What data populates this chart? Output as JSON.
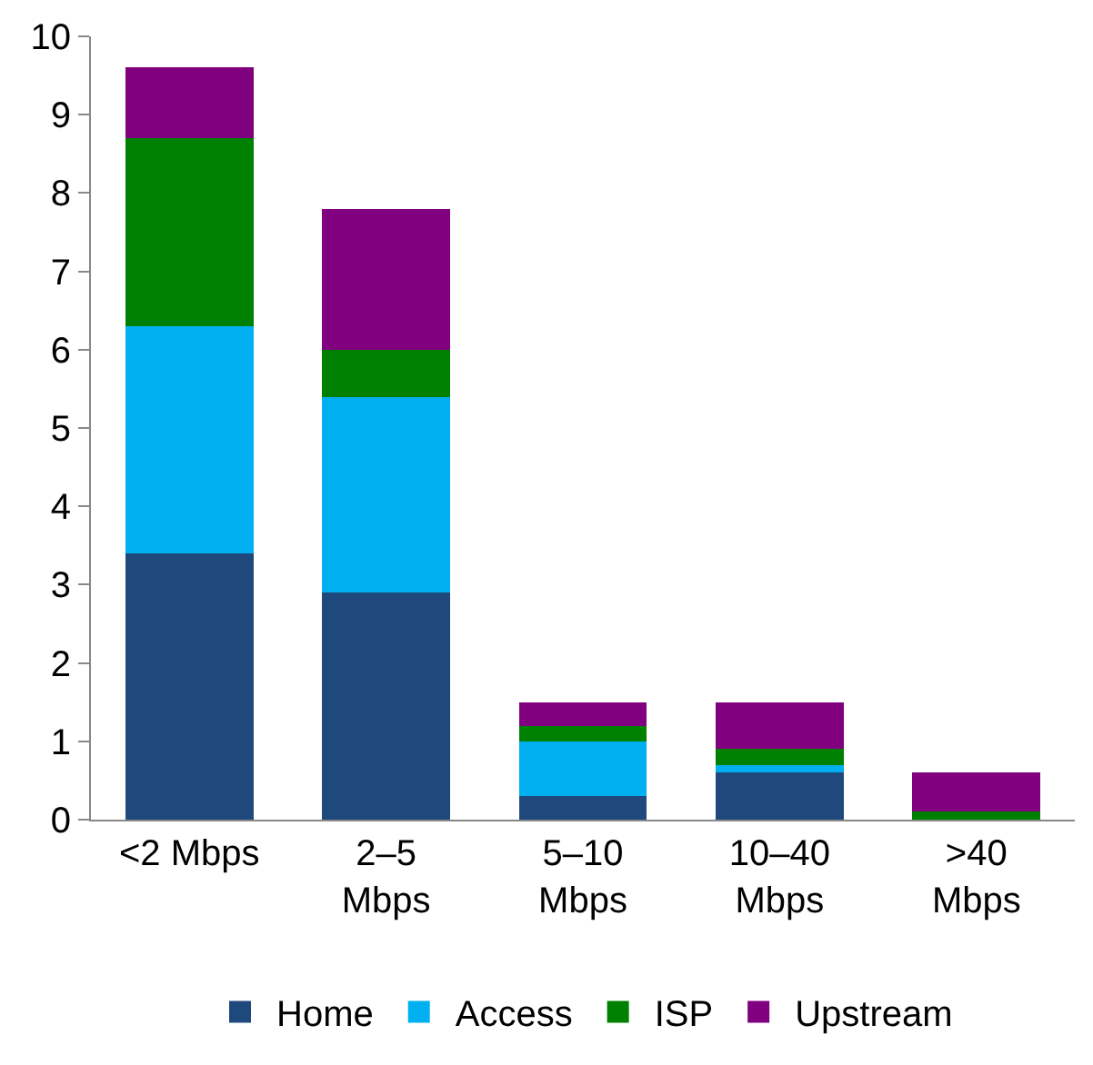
{
  "chart_data": {
    "type": "bar",
    "stacked": true,
    "categories": [
      "<2 Mbps",
      "2–5 Mbps",
      "5–10 Mbps",
      "10–40 Mbps",
      ">40 Mbps"
    ],
    "series": [
      {
        "name": "Home",
        "color": "#1f497d",
        "values": [
          3.4,
          2.9,
          0.3,
          0.6,
          0
        ]
      },
      {
        "name": "Access",
        "color": "#00b0f0",
        "values": [
          2.9,
          2.5,
          0.7,
          0.1,
          0
        ]
      },
      {
        "name": "ISP",
        "color": "#008000",
        "values": [
          2.4,
          0.6,
          0.2,
          0.2,
          0.1
        ]
      },
      {
        "name": "Upstream",
        "color": "#800080",
        "values": [
          0.9,
          1.8,
          0.3,
          0.6,
          0.5
        ]
      }
    ],
    "ylim": [
      0,
      10
    ],
    "yticks": [
      0,
      1,
      2,
      3,
      4,
      5,
      6,
      7,
      8,
      9,
      10
    ],
    "grid": false,
    "legend": "bottom"
  }
}
